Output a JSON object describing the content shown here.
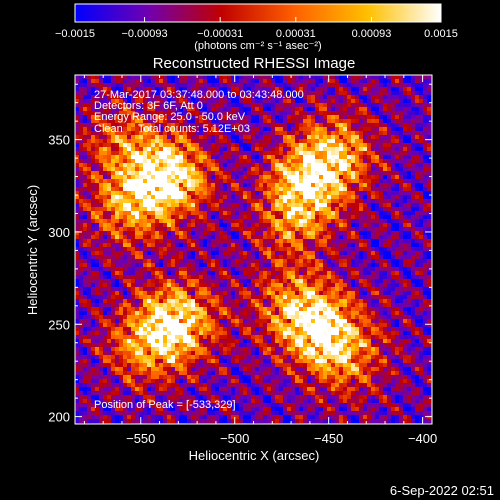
{
  "chart_data": {
    "type": "heatmap",
    "title": "Reconstructed RHESSI Image",
    "xlabel": "Heliocentric X (arcsec)",
    "ylabel": "Heliocentric Y (arcsec)",
    "xlim": [
      -585,
      -395
    ],
    "ylim": [
      196,
      385
    ],
    "xticks": [
      -550,
      -500,
      -450,
      -400
    ],
    "yticks": [
      200,
      250,
      300,
      350
    ],
    "xtick_labels": [
      "−550",
      "−500",
      "−450",
      "−400"
    ],
    "ytick_labels": [
      "200",
      "250",
      "300",
      "350"
    ],
    "colorbar": {
      "min": -0.0015,
      "max": 0.0015,
      "ticks": [
        -0.0015,
        -0.00093,
        -0.00031,
        0.00031,
        0.00093,
        0.0015
      ],
      "tick_labels": [
        "−0.0015",
        "−0.00093",
        "−0.00031",
        "0.00031",
        "0.00093",
        "0.0015"
      ],
      "units_label": "(photons cm⁻² s⁻¹ asec⁻²)",
      "colors": [
        "#0000ff",
        "#7000b0",
        "#c00000",
        "#ff6000",
        "#ffc000",
        "#ffffff"
      ]
    },
    "annotations": [
      "27-Mar-2017 03:37:48.000 to 03:43:48.000",
      "Detectors: 3F 6F, Att 0",
      "Energy Range: 25.0 - 50.0 keV",
      "Clean     Total counts: 5.12E+03"
    ],
    "peak_label": "Position of Peak = [-533,329]",
    "peak": {
      "x": -533,
      "y": 329
    },
    "sources": [
      {
        "x": -535,
        "y": 330,
        "intensity": 1.0
      },
      {
        "x": -557,
        "y": 312,
        "intensity": 0.55
      },
      {
        "x": -560,
        "y": 348,
        "intensity": 0.45
      },
      {
        "x": -460,
        "y": 328,
        "intensity": 0.8
      },
      {
        "x": -445,
        "y": 345,
        "intensity": 0.55
      },
      {
        "x": -470,
        "y": 305,
        "intensity": 0.45
      },
      {
        "x": -530,
        "y": 252,
        "intensity": 0.85
      },
      {
        "x": -548,
        "y": 238,
        "intensity": 0.55
      },
      {
        "x": -455,
        "y": 248,
        "intensity": 0.8
      },
      {
        "x": -440,
        "y": 232,
        "intensity": 0.5
      },
      {
        "x": -470,
        "y": 262,
        "intensity": 0.45
      }
    ]
  },
  "timestamp": "6-Sep-2022 02:51"
}
